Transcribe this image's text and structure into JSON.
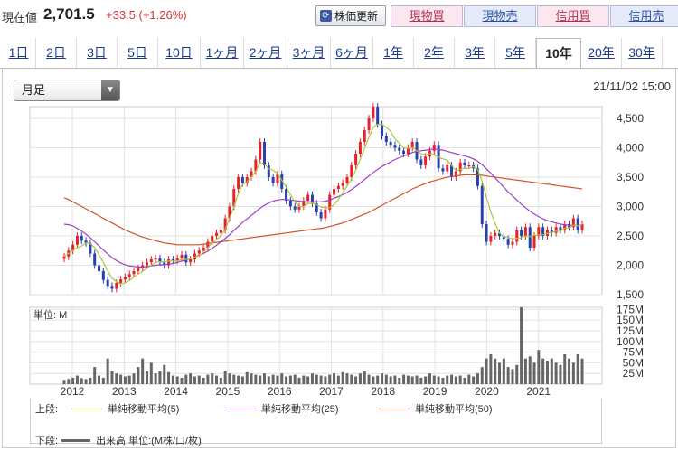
{
  "quote": {
    "label": "現在値",
    "price": "2,701.5",
    "change": "+33.5 (+1.26%)"
  },
  "toolbar": {
    "refresh_label": "株価更新",
    "trade_buttons": [
      {
        "label": "現物買",
        "bg": "#fde7ef",
        "color": "#b0305a"
      },
      {
        "label": "現物売",
        "bg": "#e6ebfa",
        "color": "#2a4fa0"
      },
      {
        "label": "信用買",
        "bg": "#fde7ef",
        "color": "#b0305a"
      },
      {
        "label": "信用売",
        "bg": "#e6ebfa",
        "color": "#2a4fa0"
      }
    ]
  },
  "tabs": [
    "1日",
    "2日",
    "3日",
    "5日",
    "10日",
    "1ヶ月",
    "2ヶ月",
    "3ヶ月",
    "6ヶ月",
    "1年",
    "2年",
    "3年",
    "5年",
    "10年",
    "20年",
    "30年"
  ],
  "active_tab": "10年",
  "period_select": "月足",
  "timestamp": "21/11/02 15:00",
  "chart_data": [
    {
      "type": "candlestick",
      "x_labels": [
        "2012",
        "2013",
        "2014",
        "2015",
        "2016",
        "2017",
        "2018",
        "2019",
        "2020",
        "2021"
      ],
      "y_ticks": [
        "4,500",
        "4,000",
        "3,500",
        "3,000",
        "2,500",
        "2,000",
        "1,500"
      ],
      "ylim": [
        1500,
        4700
      ],
      "colors": {
        "up": "#e8202a",
        "down": "#2a3fb0",
        "ma5": "#a8c83a",
        "ma25": "#9b3fc8",
        "ma50": "#d2542a"
      },
      "close": [
        2150,
        2250,
        2350,
        2500,
        2420,
        2380,
        2200,
        2000,
        1900,
        1750,
        1650,
        1600,
        1700,
        1760,
        1800,
        1850,
        1900,
        1950,
        2000,
        2050,
        2100,
        2120,
        2050,
        2000,
        2100,
        2080,
        2120,
        2180,
        2050,
        2100,
        2200,
        2250,
        2300,
        2400,
        2500,
        2550,
        2600,
        2800,
        3000,
        3300,
        3500,
        3400,
        3500,
        3600,
        3800,
        4100,
        3700,
        3500,
        3400,
        3550,
        3300,
        3100,
        3000,
        2950,
        3000,
        3100,
        3200,
        3050,
        2900,
        2800,
        2950,
        3200,
        3300,
        3350,
        3400,
        3500,
        3700,
        3900,
        4100,
        4300,
        4500,
        4700,
        4400,
        4200,
        4100,
        4050,
        4000,
        3950,
        3900,
        4000,
        4100,
        3800,
        3700,
        3850,
        3950,
        4050,
        3650,
        3600,
        3700,
        3500,
        3600,
        3750,
        3700,
        3700,
        3650,
        3350,
        2700,
        2400,
        2500,
        2550,
        2500,
        2450,
        2350,
        2400,
        2600,
        2500,
        2650,
        2300,
        2500,
        2650,
        2500,
        2600,
        2550,
        2650,
        2600,
        2700,
        2650,
        2800,
        2600,
        2700
      ],
      "ma5": [
        2150,
        2200,
        2250,
        2300,
        2330,
        2380,
        2370,
        2300,
        2180,
        2050,
        1900,
        1780,
        1720,
        1680,
        1700,
        1740,
        1800,
        1850,
        1900,
        1950,
        2000,
        2050,
        2060,
        2060,
        2070,
        2070,
        2070,
        2100,
        2100,
        2110,
        2140,
        2160,
        2220,
        2300,
        2380,
        2440,
        2500,
        2620,
        2800,
        3000,
        3220,
        3380,
        3420,
        3500,
        3600,
        3750,
        3720,
        3640,
        3620,
        3560,
        3450,
        3330,
        3200,
        3080,
        3000,
        3000,
        3050,
        3060,
        3030,
        2990,
        2980,
        2980,
        3030,
        3120,
        3240,
        3350,
        3470,
        3620,
        3800,
        3990,
        4180,
        4350,
        4400,
        4400,
        4350,
        4280,
        4150,
        4080,
        4000,
        3990,
        4000,
        3950,
        3900,
        3880,
        3900,
        3880,
        3840,
        3810,
        3790,
        3700,
        3610,
        3630,
        3650,
        3650,
        3680,
        3630,
        3430,
        3160,
        2910,
        2710,
        2550,
        2480,
        2470,
        2450,
        2460,
        2470,
        2500,
        2490,
        2510,
        2520,
        2520,
        2540,
        2560,
        2580,
        2580,
        2630,
        2640,
        2680,
        2670,
        2690
      ],
      "ma25": [
        2700,
        2690,
        2670,
        2630,
        2580,
        2530,
        2470,
        2400,
        2330,
        2260,
        2190,
        2130,
        2080,
        2040,
        2010,
        1990,
        1980,
        1970,
        1970,
        1980,
        1990,
        2000,
        2010,
        2010,
        2020,
        2030,
        2050,
        2070,
        2090,
        2110,
        2140,
        2170,
        2200,
        2240,
        2290,
        2340,
        2400,
        2460,
        2520,
        2590,
        2660,
        2730,
        2790,
        2850,
        2910,
        2970,
        3020,
        3060,
        3090,
        3110,
        3120,
        3120,
        3110,
        3100,
        3090,
        3080,
        3080,
        3080,
        3080,
        3080,
        3090,
        3110,
        3140,
        3170,
        3200,
        3240,
        3290,
        3340,
        3400,
        3460,
        3520,
        3580,
        3630,
        3680,
        3720,
        3760,
        3800,
        3830,
        3860,
        3890,
        3920,
        3940,
        3950,
        3960,
        3970,
        3980,
        3970,
        3960,
        3940,
        3920,
        3900,
        3880,
        3860,
        3840,
        3810,
        3770,
        3710,
        3640,
        3570,
        3490,
        3410,
        3330,
        3250,
        3180,
        3110,
        3040,
        2980,
        2920,
        2870,
        2830,
        2790,
        2760,
        2740,
        2720,
        2700,
        2690,
        2680,
        2680,
        2680,
        2680
      ],
      "ma50": [
        3150,
        3120,
        3080,
        3040,
        3000,
        2960,
        2920,
        2880,
        2840,
        2800,
        2760,
        2720,
        2680,
        2640,
        2600,
        2570,
        2540,
        2510,
        2480,
        2460,
        2440,
        2420,
        2400,
        2380,
        2370,
        2360,
        2350,
        2350,
        2350,
        2350,
        2350,
        2350,
        2360,
        2370,
        2380,
        2390,
        2400,
        2410,
        2420,
        2430,
        2440,
        2450,
        2460,
        2470,
        2480,
        2490,
        2500,
        2510,
        2520,
        2530,
        2540,
        2550,
        2560,
        2570,
        2580,
        2590,
        2600,
        2610,
        2620,
        2630,
        2640,
        2660,
        2680,
        2700,
        2720,
        2750,
        2780,
        2810,
        2840,
        2870,
        2900,
        2940,
        2980,
        3020,
        3060,
        3100,
        3140,
        3180,
        3220,
        3260,
        3300,
        3330,
        3360,
        3390,
        3420,
        3440,
        3460,
        3480,
        3500,
        3510,
        3520,
        3530,
        3540,
        3540,
        3540,
        3540,
        3530,
        3520,
        3510,
        3500,
        3490,
        3480,
        3470,
        3460,
        3450,
        3440,
        3430,
        3420,
        3410,
        3400,
        3390,
        3380,
        3370,
        3360,
        3350,
        3340,
        3330,
        3320,
        3310,
        3300
      ]
    },
    {
      "type": "bar",
      "label": "単位: M",
      "y_ticks": [
        "175M",
        "150M",
        "125M",
        "100M",
        "75M",
        "50M",
        "25M"
      ],
      "ylim": [
        0,
        180
      ],
      "color": "#666666",
      "values": [
        10,
        12,
        15,
        20,
        14,
        12,
        15,
        40,
        20,
        15,
        60,
        30,
        25,
        22,
        18,
        20,
        25,
        40,
        60,
        30,
        50,
        25,
        30,
        45,
        28,
        20,
        18,
        15,
        22,
        25,
        18,
        20,
        15,
        22,
        25,
        20,
        15,
        30,
        25,
        22,
        20,
        18,
        28,
        25,
        22,
        20,
        25,
        18,
        22,
        20,
        25,
        18,
        20,
        22,
        15,
        20,
        18,
        25,
        22,
        20,
        18,
        22,
        25,
        20,
        28,
        25,
        22,
        18,
        25,
        30,
        22,
        18,
        20,
        25,
        22,
        18,
        20,
        15,
        22,
        20,
        18,
        20,
        15,
        18,
        25,
        20,
        18,
        15,
        20,
        22,
        18,
        20,
        15,
        22,
        18,
        25,
        40,
        60,
        70,
        60,
        50,
        60,
        40,
        35,
        45,
        180,
        60,
        65,
        50,
        80,
        60,
        55,
        60,
        50,
        45,
        70,
        60,
        50,
        70,
        60
      ]
    }
  ],
  "legend": {
    "upper_label": "上段:",
    "lower_label": "下段:",
    "items": [
      {
        "label": "単純移動平均(5)",
        "color": "#a8c83a"
      },
      {
        "label": "単純移動平均(25)",
        "color": "#9b3fc8"
      },
      {
        "label": "単純移動平均(50)",
        "color": "#d2542a"
      }
    ],
    "volume_label": "出来高 単位:(M株/口/枚)"
  }
}
